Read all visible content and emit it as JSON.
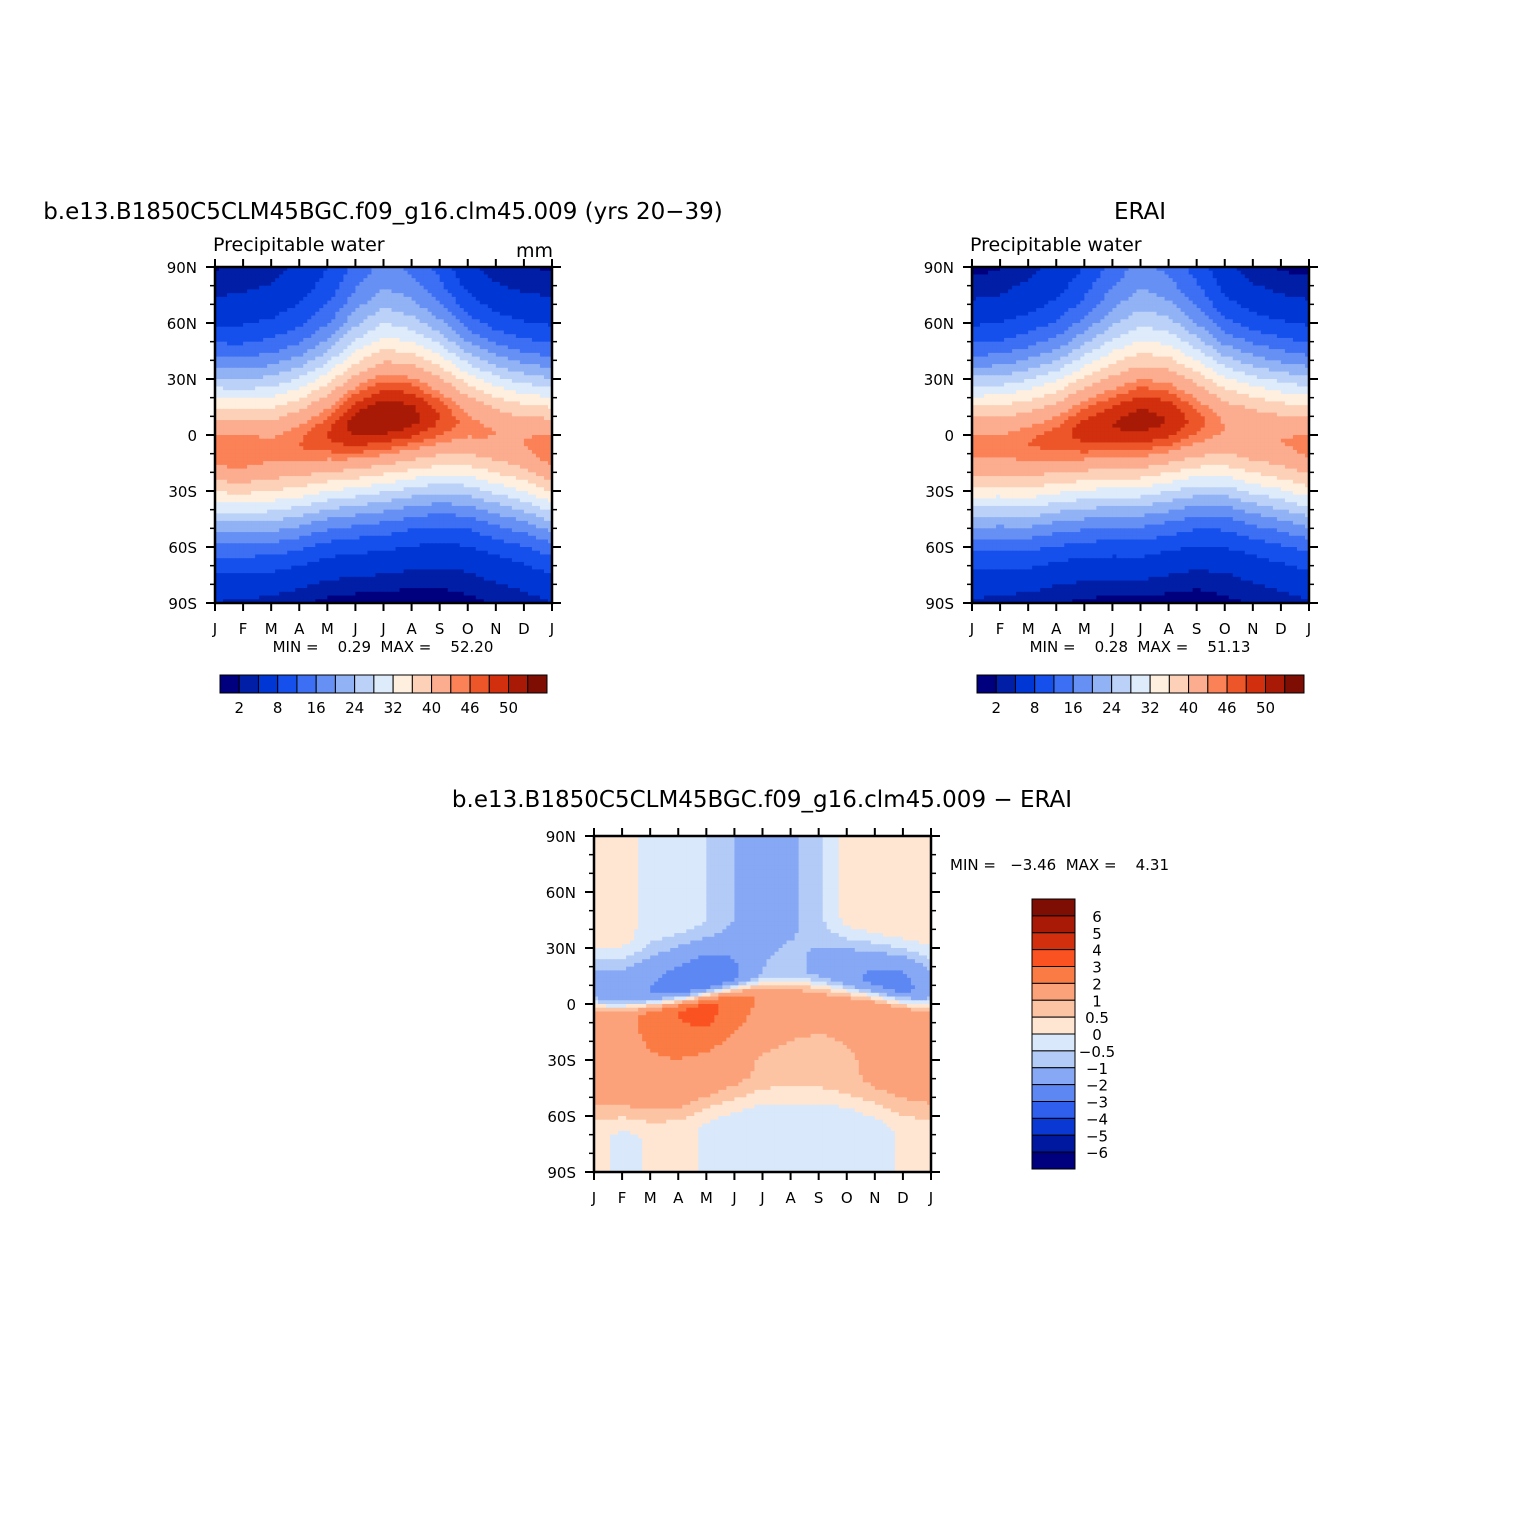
{
  "chart_data": [
    {
      "type": "heatmap",
      "title": "b.e13.B1850C5CLM45BGC.f09_g16.clm45.009 (yrs 20−39)",
      "subtitle": "Precipitable water",
      "units": "mm",
      "x_tick_labels": [
        "J",
        "F",
        "M",
        "A",
        "M",
        "J",
        "J",
        "A",
        "S",
        "O",
        "N",
        "D",
        "J"
      ],
      "y_tick_labels": [
        "90N",
        "60N",
        "30N",
        "0",
        "30S",
        "60S",
        "90S"
      ],
      "ylim": [
        -90,
        90
      ],
      "stats_label": "MIN =    0.29  MAX =    52.20",
      "min": 0.29,
      "max": 52.2,
      "colorbar_labels": [
        "2",
        "8",
        "16",
        "24",
        "32",
        "40",
        "46",
        "50"
      ],
      "colorbar_colors": [
        "#00007e",
        "#001ea6",
        "#0037d4",
        "#1650ec",
        "#3c6ff4",
        "#6690f4",
        "#91b2f5",
        "#bbd1f8",
        "#deebfb",
        "#feefdf",
        "#fdd1b8",
        "#fcac8f",
        "#fb8157",
        "#ec5629",
        "#d12f0e",
        "#a91a06",
        "#7e0d04"
      ],
      "data": {
        "peak_lat_by_month": [
          -8,
          -9,
          -8,
          -5,
          0,
          5,
          9,
          10,
          9,
          5,
          0,
          -4,
          -8
        ],
        "peak_value_by_month": [
          46,
          46,
          45,
          46,
          48,
          51,
          52,
          51,
          48,
          45,
          44,
          44,
          46
        ],
        "width_deg_by_month": [
          32,
          32,
          33,
          33,
          33,
          34,
          35,
          34,
          33,
          32,
          32,
          32,
          32
        ],
        "north_pole_value_by_month": [
          1.5,
          2,
          2.5,
          4,
          7,
          12,
          15,
          13,
          9,
          4,
          2,
          1.5,
          1.5
        ],
        "south_pole_value_by_month": [
          2.5,
          2,
          1.5,
          1,
          0.5,
          0.3,
          0.3,
          0.3,
          0.5,
          1,
          1.5,
          2,
          2.5
        ]
      }
    },
    {
      "type": "heatmap",
      "title": "ERAI",
      "subtitle": "Precipitable water",
      "x_tick_labels": [
        "J",
        "F",
        "M",
        "A",
        "M",
        "J",
        "J",
        "A",
        "S",
        "O",
        "N",
        "D",
        "J"
      ],
      "y_tick_labels": [
        "90N",
        "60N",
        "30N",
        "0",
        "30S",
        "60S",
        "90S"
      ],
      "ylim": [
        -90,
        90
      ],
      "stats_label": "MIN =    0.28  MAX =    51.13",
      "min": 0.28,
      "max": 51.13,
      "colorbar_labels": [
        "2",
        "8",
        "16",
        "24",
        "32",
        "40",
        "46",
        "50"
      ],
      "colorbar_colors": [
        "#00007e",
        "#001ea6",
        "#0037d4",
        "#1650ec",
        "#3c6ff4",
        "#6690f4",
        "#91b2f5",
        "#bbd1f8",
        "#deebfb",
        "#feefdf",
        "#fdd1b8",
        "#fcac8f",
        "#fb8157",
        "#ec5629",
        "#d12f0e",
        "#a91a06",
        "#7e0d04"
      ],
      "data": {
        "peak_lat_by_month": [
          -6,
          -6,
          -5,
          -2,
          2,
          5,
          7,
          8,
          7,
          4,
          0,
          -3,
          -6
        ],
        "peak_value_by_month": [
          45,
          45,
          46,
          47,
          49,
          50,
          51,
          50,
          47,
          44,
          44,
          44,
          45
        ],
        "width_deg_by_month": [
          32,
          32,
          33,
          33,
          34,
          35,
          36,
          35,
          33,
          32,
          32,
          32,
          32
        ],
        "north_pole_value_by_month": [
          1,
          1.5,
          2.5,
          4,
          7,
          12,
          15,
          13,
          9,
          4,
          2,
          1.2,
          1
        ],
        "south_pole_value_by_month": [
          2.5,
          2,
          1.5,
          1,
          0.5,
          0.3,
          0.3,
          0.3,
          0.5,
          1,
          1.5,
          2,
          2.5
        ]
      }
    },
    {
      "type": "heatmap",
      "title": "b.e13.B1850C5CLM45BGC.f09_g16.clm45.009 − ERAI",
      "x_tick_labels": [
        "J",
        "F",
        "M",
        "A",
        "M",
        "J",
        "J",
        "A",
        "S",
        "O",
        "N",
        "D",
        "J"
      ],
      "y_tick_labels": [
        "90N",
        "60N",
        "30N",
        "0",
        "30S",
        "60S",
        "90S"
      ],
      "ylim": [
        -90,
        90
      ],
      "stats_label": "MIN =   −3.46  MAX =    4.31",
      "min": -3.46,
      "max": 4.31,
      "colorbar_labels": [
        "6",
        "5",
        "4",
        "3",
        "2",
        "1",
        "0.5",
        "0",
        "−0.5",
        "−1",
        "−2",
        "−3",
        "−4",
        "−5",
        "−6"
      ],
      "colorbar_colors": [
        "#7e0d04",
        "#a91a06",
        "#d12f0e",
        "#fb5222",
        "#fb7b44",
        "#fca27a",
        "#fdc4a4",
        "#fee6d2",
        "#d9e8fb",
        "#b3cbf7",
        "#87a8f4",
        "#5d88f3",
        "#2f5fec",
        "#0a38d2",
        "#0018a0",
        "#00007e"
      ],
      "data": {
        "north_band_value_by_month": [
          0.3,
          0.3,
          -0.3,
          -0.4,
          -0.5,
          -1,
          -1.5,
          -1.2,
          -0.6,
          0.2,
          0.3,
          0.3,
          0.3
        ],
        "north_tropics_value_by_month": [
          -1.4,
          -1.6,
          -2,
          -2.6,
          -3,
          -2.2,
          -1,
          -0.8,
          -1.2,
          -1.8,
          -2.2,
          -2.4,
          -1.4
        ],
        "south_tropics_value_by_month": [
          1.2,
          1.5,
          2.4,
          3,
          3.4,
          2.5,
          1.8,
          1.4,
          1.2,
          1.2,
          1.4,
          1.4,
          1.2
        ],
        "south_mid_value_by_month": [
          1.2,
          1.3,
          1.5,
          1.6,
          1.4,
          1.2,
          0.9,
          0.8,
          0.8,
          0.9,
          1.1,
          1.2,
          1.2
        ],
        "south_high_value_by_month": [
          0.2,
          -0.2,
          0.1,
          0.2,
          -0.1,
          -0.2,
          -0.3,
          -0.2,
          -0.3,
          -0.3,
          -0.2,
          0.1,
          0.2
        ]
      }
    }
  ]
}
